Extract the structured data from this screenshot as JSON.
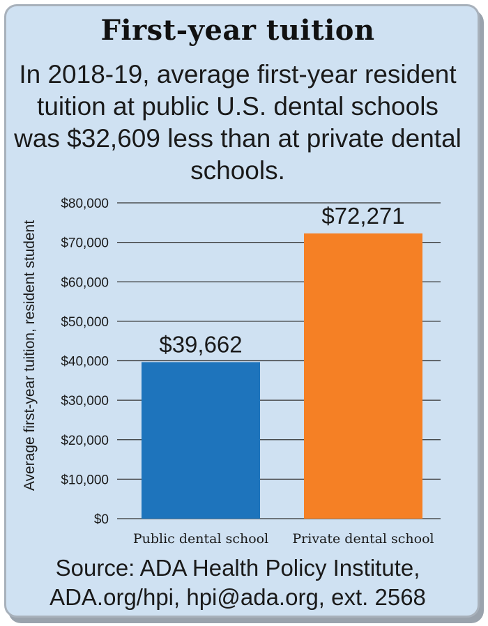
{
  "colors": {
    "background": "#cfe1f2",
    "public": "#1e74bc",
    "private": "#f58025",
    "gridline": "#333333"
  },
  "source": {
    "line1": "Source: ADA Health Policy Institute,",
    "line2": "ADA.org/hpi, hpi@ada.org, ext. 2568"
  },
  "chart_data": {
    "type": "bar",
    "title": "First-year tuition",
    "subtitle": "In 2018-19, average first-year resident tuition at public U.S. dental schools was $32,609 less than at private dental schools.",
    "ylabel": "Average first-year tuition, resident student",
    "xlabel": "",
    "categories": [
      "Public dental school",
      "Private dental school"
    ],
    "values": [
      39662,
      72271
    ],
    "data_labels": [
      "$39,662",
      "$72,271"
    ],
    "ylim": [
      0,
      80000
    ],
    "yticks": [
      0,
      10000,
      20000,
      30000,
      40000,
      50000,
      60000,
      70000,
      80000
    ],
    "ytick_labels": [
      "$0",
      "$10,000",
      "$20,000",
      "$30,000",
      "$40,000",
      "$50,000",
      "$60,000",
      "$70,000",
      "$80,000"
    ],
    "grid": true,
    "legend": "none"
  }
}
